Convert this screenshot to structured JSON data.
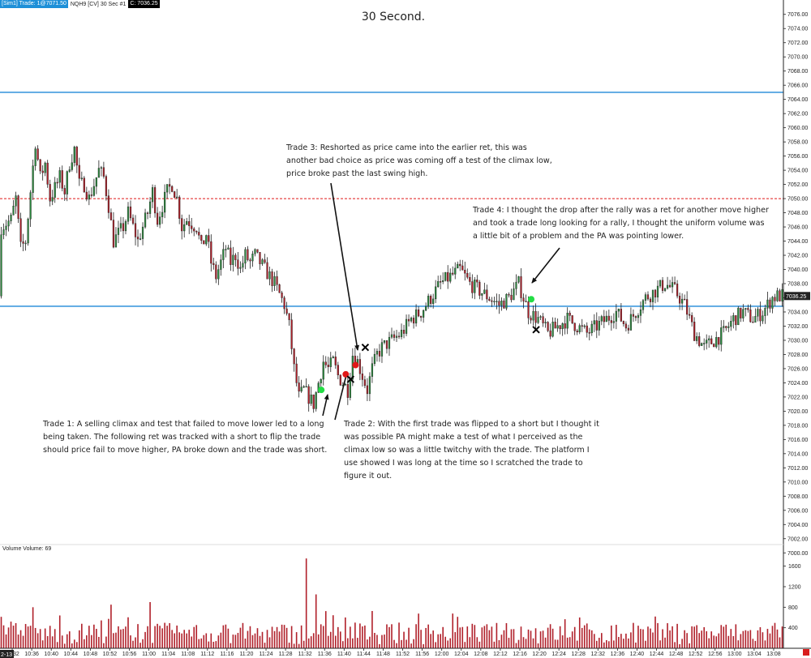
{
  "header": {
    "account_label": "[Sim1]  Trade: 1@7071.50",
    "instrument_label": "NQH9 [CV]  30 Sec   #1",
    "close_label": "C: 7036.25",
    "date_stub": "2-13"
  },
  "chart_data": {
    "type": "candlestick",
    "title": "30 Second.",
    "price_axis": {
      "ticks": [
        "7076.00",
        "7074.00",
        "7072.00",
        "7070.00",
        "7068.00",
        "7066.00",
        "7064.00",
        "7062.00",
        "7060.00",
        "7058.00",
        "7056.00",
        "7054.00",
        "7052.00",
        "7050.00",
        "7048.00",
        "7046.00",
        "7044.00",
        "7042.00",
        "7040.00",
        "7038.00",
        "7036.00",
        "7034.00",
        "7032.00",
        "7030.00",
        "7028.00",
        "7026.00",
        "7024.00",
        "7022.00",
        "7020.00",
        "7018.00",
        "7016.00",
        "7014.00",
        "7012.00",
        "7010.00",
        "7008.00",
        "7006.00",
        "7004.00",
        "7002.00",
        "7000.00"
      ],
      "range": [
        6999,
        7077
      ]
    },
    "last_price_label": "7036.25",
    "time_axis": {
      "ticks": [
        "10:32",
        "10:36",
        "10:40",
        "10:44",
        "10:48",
        "10:52",
        "10:56",
        "11:00",
        "11:04",
        "11:08",
        "11:12",
        "11:16",
        "11:20",
        "11:24",
        "11:28",
        "11:32",
        "11:36",
        "11:40",
        "11:44",
        "11:48",
        "11:52",
        "11:56",
        "12:00",
        "12:04",
        "12:08",
        "12:12",
        "12:16",
        "12:20",
        "12:24",
        "12:28",
        "12:32",
        "12:36",
        "12:40",
        "12:44",
        "12:48",
        "12:52",
        "12:56",
        "13:00",
        "13:04",
        "13:08"
      ]
    },
    "levels": [
      {
        "price": 7065.0,
        "style": "solid",
        "color": "#1e88d8"
      },
      {
        "price": 7050.0,
        "style": "dashed",
        "color": "#e01818"
      },
      {
        "price": 7034.8,
        "style": "solid",
        "color": "#1e88d8"
      }
    ],
    "price_path": [
      [
        "10:30",
        7046
      ],
      [
        "10:32",
        7047
      ],
      [
        "10:33",
        7050
      ],
      [
        "10:34",
        7043
      ],
      [
        "10:35",
        7044
      ],
      [
        "10:36",
        7051
      ],
      [
        "10:37",
        7058
      ],
      [
        "10:38",
        7053
      ],
      [
        "10:39",
        7055
      ],
      [
        "10:40",
        7050
      ],
      [
        "10:42",
        7053
      ],
      [
        "10:43",
        7051
      ],
      [
        "10:44",
        7055
      ],
      [
        "10:45",
        7057
      ],
      [
        "10:46",
        7052
      ],
      [
        "10:47",
        7052
      ],
      [
        "10:48",
        7050
      ],
      [
        "10:50",
        7054
      ],
      [
        "10:51",
        7053
      ],
      [
        "10:52",
        7049
      ],
      [
        "10:53",
        7044
      ],
      [
        "10:55",
        7046
      ],
      [
        "10:56",
        7048
      ],
      [
        "10:57",
        7046
      ],
      [
        "10:58",
        7044
      ],
      [
        "11:00",
        7048
      ],
      [
        "11:01",
        7051
      ],
      [
        "11:02",
        7047
      ],
      [
        "11:03",
        7049
      ],
      [
        "11:04",
        7051
      ],
      [
        "11:05",
        7052
      ],
      [
        "11:06",
        7050
      ],
      [
        "11:07",
        7046
      ],
      [
        "11:08",
        7047
      ],
      [
        "11:10",
        7046
      ],
      [
        "11:11",
        7043
      ],
      [
        "11:12",
        7045
      ],
      [
        "11:13",
        7041
      ],
      [
        "11:14",
        7039
      ],
      [
        "11:15",
        7041
      ],
      [
        "11:16",
        7043
      ],
      [
        "11:17",
        7041
      ],
      [
        "11:18",
        7042
      ],
      [
        "11:19",
        7040
      ],
      [
        "11:20",
        7042
      ],
      [
        "11:21",
        7041
      ],
      [
        "11:22",
        7042
      ],
      [
        "11:24",
        7040
      ],
      [
        "11:25",
        7039
      ],
      [
        "11:26",
        7038
      ],
      [
        "11:28",
        7035
      ],
      [
        "11:29",
        7032
      ],
      [
        "11:30",
        7026
      ],
      [
        "11:31",
        7022
      ],
      [
        "11:32",
        7023
      ],
      [
        "11:33",
        7022
      ],
      [
        "11:34",
        7021
      ],
      [
        "11:35",
        7024
      ],
      [
        "11:36",
        7027
      ],
      [
        "11:37",
        7026
      ],
      [
        "11:38",
        7027
      ],
      [
        "11:39",
        7025
      ],
      [
        "11:40",
        7024
      ],
      [
        "11:41",
        7023
      ],
      [
        "11:42",
        7028
      ],
      [
        "11:43",
        7027
      ],
      [
        "11:44",
        7025
      ],
      [
        "11:45",
        7023
      ],
      [
        "11:46",
        7026
      ],
      [
        "11:47",
        7028
      ],
      [
        "11:48",
        7029
      ],
      [
        "11:50",
        7030
      ],
      [
        "11:52",
        7031
      ],
      [
        "11:54",
        7033
      ],
      [
        "11:56",
        7034
      ],
      [
        "11:58",
        7036
      ],
      [
        "12:00",
        7038
      ],
      [
        "12:02",
        7039
      ],
      [
        "12:04",
        7040
      ],
      [
        "12:06",
        7038
      ],
      [
        "12:08",
        7037
      ],
      [
        "12:10",
        7036
      ],
      [
        "12:12",
        7035
      ],
      [
        "12:14",
        7036
      ],
      [
        "12:16",
        7038
      ],
      [
        "12:17",
        7036
      ],
      [
        "12:18",
        7034
      ],
      [
        "12:20",
        7033
      ],
      [
        "12:22",
        7031
      ],
      [
        "12:24",
        7032
      ],
      [
        "12:26",
        7033
      ],
      [
        "12:28",
        7032
      ],
      [
        "12:30",
        7031
      ],
      [
        "12:32",
        7032
      ],
      [
        "12:34",
        7033
      ],
      [
        "12:36",
        7034
      ],
      [
        "12:38",
        7032
      ],
      [
        "12:40",
        7034
      ],
      [
        "12:42",
        7036
      ],
      [
        "12:44",
        7037
      ],
      [
        "12:46",
        7038
      ],
      [
        "12:48",
        7037
      ],
      [
        "12:50",
        7035
      ],
      [
        "12:52",
        7031
      ],
      [
        "12:54",
        7029
      ],
      [
        "12:56",
        7030
      ],
      [
        "12:58",
        7031
      ],
      [
        "13:00",
        7033
      ],
      [
        "13:02",
        7034
      ],
      [
        "13:04",
        7033
      ],
      [
        "13:06",
        7034
      ],
      [
        "13:08",
        7036
      ],
      [
        "13:09",
        7036.25
      ]
    ],
    "markers": [
      {
        "time": "11:35",
        "price": 7023.0,
        "kind": "dot",
        "color": "#22dd44"
      },
      {
        "time": "11:40",
        "price": 7025.2,
        "kind": "dot",
        "color": "#e01818"
      },
      {
        "time": "11:41",
        "price": 7024.5,
        "kind": "x",
        "color": "#000000"
      },
      {
        "time": "11:42",
        "price": 7026.5,
        "kind": "dot",
        "color": "#e01818"
      },
      {
        "time": "11:44",
        "price": 7029.0,
        "kind": "x",
        "color": "#000000"
      },
      {
        "time": "12:18",
        "price": 7035.8,
        "kind": "dot",
        "color": "#22dd44"
      },
      {
        "time": "12:19",
        "price": 7031.5,
        "kind": "x",
        "color": "#000000"
      }
    ],
    "volume": {
      "label": "Volume  Volume: 69",
      "ticks": [
        "1600",
        "1200",
        "800",
        "400"
      ],
      "range": [
        0,
        1800
      ],
      "spikes": [
        [
          "10:36",
          800
        ],
        [
          "10:52",
          850
        ],
        [
          "11:00",
          900
        ],
        [
          "11:32",
          1750
        ],
        [
          "11:34",
          1050
        ],
        [
          "11:40",
          600
        ],
        [
          "11:42",
          500
        ],
        [
          "12:28",
          600
        ],
        [
          "12:52",
          450
        ],
        [
          "12:58",
          460
        ]
      ]
    },
    "annotations": [
      {
        "id": "trade1",
        "text": "Trade 1:  A selling climax and test that failed to move lower led to a long being taken.  The following ret was tracked with a short to flip the trade should price fail to move higher, PA broke down and the trade was short."
      },
      {
        "id": "trade2",
        "text": "Trade 2:  With the first trade was flipped to a short but I thought it was possible PA might make a test of what I perceived as the climax low so was a little twitchy with the trade.  The platform I use showed I was long at the time so I scratched the trade to figure it out."
      },
      {
        "id": "trade3",
        "text": "Trade 3:  Reshorted as price came into the earlier ret, this was another bad choice as price was coming off a test of the climax low, price broke past the last swing high."
      },
      {
        "id": "trade4",
        "text": "Trade 4:  I thought the drop after the rally was a ret for another move higher and took a trade long looking for a rally, I thought the uniform volume was a little bit of a problem and the PA was pointing lower."
      }
    ],
    "colors": {
      "up": "#2b8a3e",
      "down": "#b0202a",
      "wick": "#222222",
      "grid": "#ffffff",
      "level_blue": "#1e88d8",
      "level_red": "#e01818",
      "volume": "#b0202a",
      "last_price_bg": "#222222"
    }
  }
}
